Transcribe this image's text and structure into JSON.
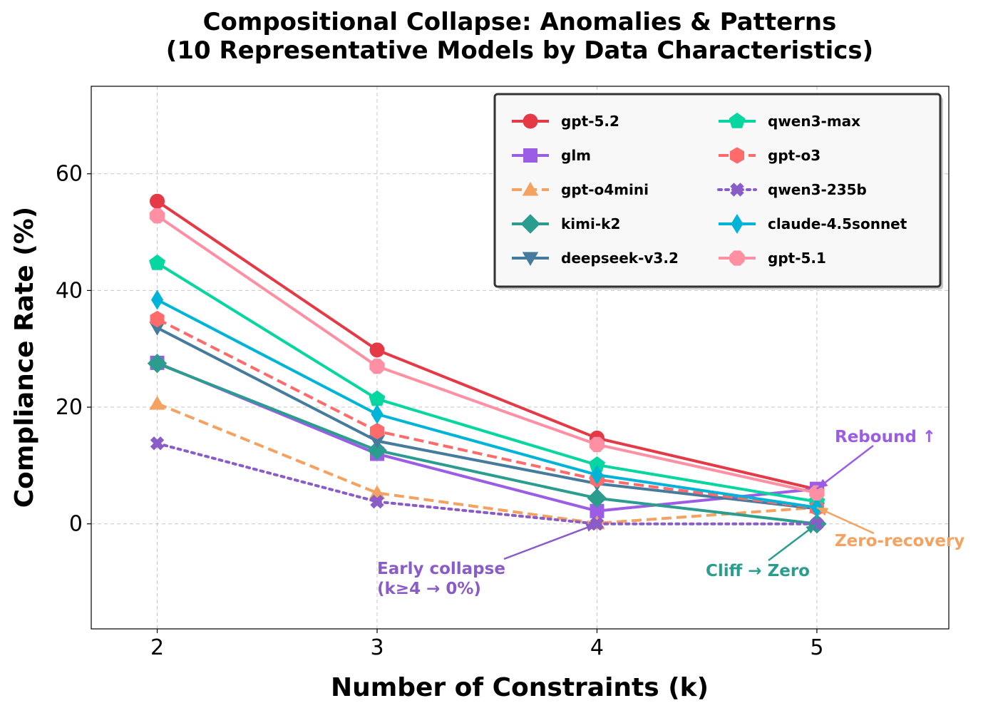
{
  "chart_data": {
    "type": "line",
    "title": "Compositional Collapse: Anomalies & Patterns",
    "subtitle": "(10 Representative Models by Data Characteristics)",
    "xlabel": "Number of Constraints (k)",
    "ylabel": "Compliance Rate (%)",
    "x": [
      2,
      3,
      4,
      5
    ],
    "xlim": [
      1.7,
      5.6
    ],
    "ylim": [
      -18,
      75
    ],
    "yticks": [
      0,
      20,
      40,
      60
    ],
    "xticks": [
      2,
      3,
      4,
      5
    ],
    "grid": true,
    "legend_position": "top-right",
    "series": [
      {
        "name": "gpt-5.2",
        "values": [
          55.3,
          29.8,
          14.7,
          5.9
        ],
        "color": "#E63946",
        "marker": "circle",
        "dash": "solid"
      },
      {
        "name": "glm",
        "values": [
          27.6,
          12.0,
          2.2,
          6.0
        ],
        "color": "#9B5DE5",
        "marker": "square",
        "dash": "solid"
      },
      {
        "name": "gpt-o4mini",
        "values": [
          20.6,
          5.3,
          0.1,
          2.8
        ],
        "color": "#F4A261",
        "marker": "triangle",
        "dash": "dashed"
      },
      {
        "name": "kimi-k2",
        "values": [
          27.5,
          12.6,
          4.4,
          0.0
        ],
        "color": "#2A9D8F",
        "marker": "diamond",
        "dash": "solid"
      },
      {
        "name": "deepseek-v3.2",
        "values": [
          33.6,
          14.2,
          6.9,
          2.6
        ],
        "color": "#457B9D",
        "marker": "triangle-down",
        "dash": "solid"
      },
      {
        "name": "qwen3-max",
        "values": [
          44.7,
          21.4,
          10.1,
          3.8
        ],
        "color": "#06D6A0",
        "marker": "pentagon",
        "dash": "solid"
      },
      {
        "name": "gpt-o3",
        "values": [
          35.1,
          15.9,
          7.6,
          2.7
        ],
        "color": "#FF6B6B",
        "marker": "hexagon",
        "dash": "dashed"
      },
      {
        "name": "qwen3-235b",
        "values": [
          13.8,
          3.8,
          0.0,
          0.0
        ],
        "color": "#8A5CC7",
        "marker": "x",
        "dash": "dotted"
      },
      {
        "name": "claude-4.5sonnet",
        "values": [
          38.4,
          18.8,
          8.4,
          2.8
        ],
        "color": "#00B4D8",
        "marker": "thin-diamond",
        "dash": "solid"
      },
      {
        "name": "gpt-5.1",
        "values": [
          52.8,
          27.0,
          13.6,
          5.3
        ],
        "color": "#FF8FA3",
        "marker": "octagon",
        "dash": "solid"
      }
    ],
    "annotations": [
      {
        "text": "Rebound ↑",
        "color": "#9B5DE5",
        "points_to": {
          "x": 5,
          "y": 6.0
        }
      },
      {
        "text": "Zero-recovery",
        "color": "#F4A261",
        "points_to": {
          "x": 5,
          "y": 2.8
        }
      },
      {
        "text": "Cliff → Zero",
        "color": "#2A9D8F",
        "points_to": {
          "x": 5,
          "y": 0.0
        }
      },
      {
        "text": "Early collapse",
        "text2": "(k≥4 → 0%)",
        "color": "#8A5CC7",
        "points_to": {
          "x": 4,
          "y": 0.0
        }
      }
    ]
  }
}
